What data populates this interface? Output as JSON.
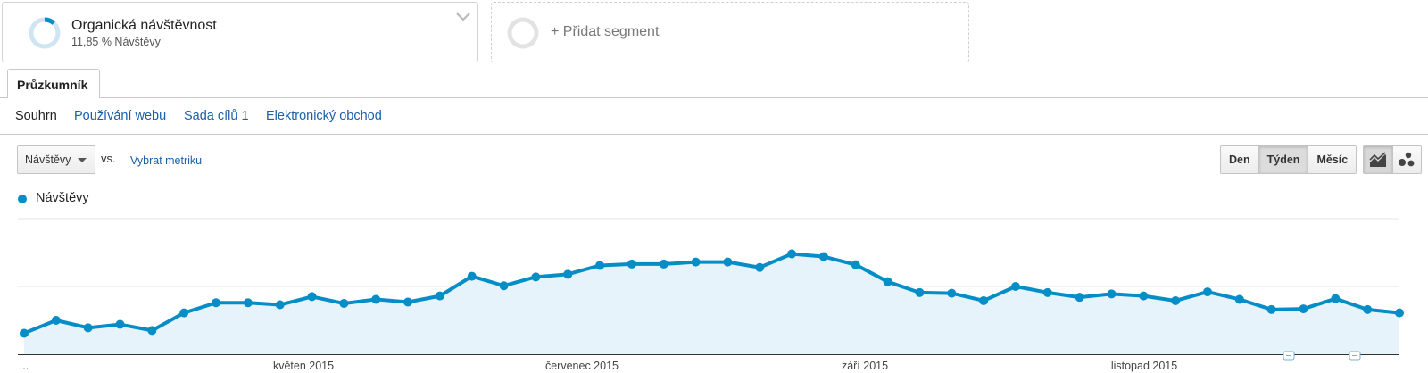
{
  "segment": {
    "name": "Organická návštěvnost",
    "subtitle": "11,85 % Návštěvy",
    "share": 0.1185
  },
  "add_segment": {
    "label": "+ Přidat segment"
  },
  "tabs": [
    {
      "label": "Průzkumník"
    }
  ],
  "subnav": {
    "items": [
      {
        "label": "Souhrn",
        "active": true
      },
      {
        "label": "Používání webu",
        "active": false
      },
      {
        "label": "Sada cílů 1",
        "active": false
      },
      {
        "label": "Elektronický obchod",
        "active": false
      }
    ]
  },
  "controls": {
    "metric": "Návštěvy",
    "vs": "vs.",
    "pick_metric": "Vybrat metriku",
    "periods": [
      {
        "label": "Den",
        "selected": false
      },
      {
        "label": "Týden",
        "selected": true
      },
      {
        "label": "Měsíc",
        "selected": false
      }
    ],
    "view_icons": [
      "line-chart-icon",
      "motion-chart-icon"
    ]
  },
  "colors": {
    "accent": "#058dc7",
    "fill": "#e6f3fa",
    "link": "#1a5fa8"
  },
  "chart_data": {
    "type": "area",
    "series": [
      {
        "name": "Návštěvy",
        "values": [
          31,
          50,
          39,
          44,
          35,
          61,
          76,
          76,
          73,
          85,
          75,
          81,
          77,
          86,
          115,
          101,
          114,
          118,
          131,
          133,
          133,
          136,
          136,
          128,
          148,
          144,
          132,
          107,
          91,
          90,
          79,
          100,
          91,
          84,
          89,
          86,
          79,
          92,
          81,
          66,
          67,
          82,
          66,
          61
        ]
      }
    ],
    "ylim": [
      0,
      200
    ],
    "grid": true,
    "x_tick_labels": [
      "...",
      "květen 2015",
      "červenec 2015",
      "září 2015",
      "listopad 2015"
    ],
    "annotation_markers": 2
  }
}
